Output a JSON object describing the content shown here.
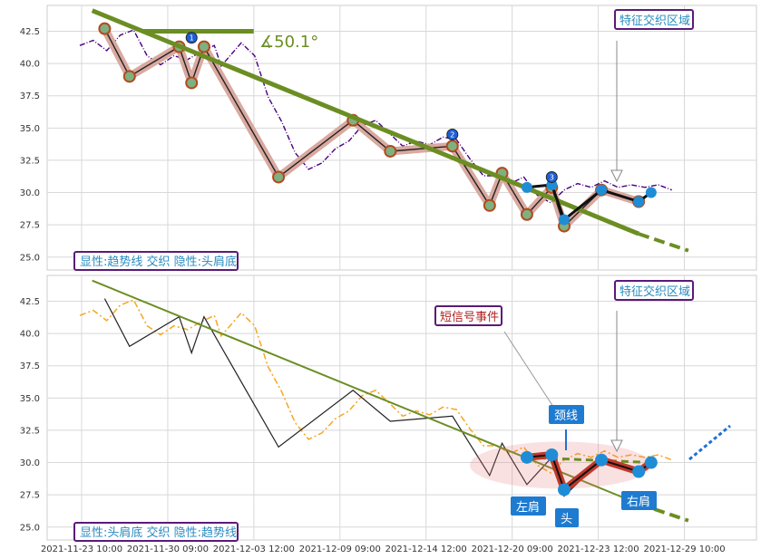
{
  "chart_data": [
    {
      "type": "line",
      "ylim": [
        24,
        44.5
      ],
      "yticks": [
        "25.0",
        "27.5",
        "30.0",
        "32.5",
        "35.0",
        "37.5",
        "40.0",
        "42.5"
      ],
      "grid": true,
      "legend_label": "显性:趋势线 交织 隐性:头肩底",
      "annotation_region": "特征交织区域",
      "angle_label": "∡50.1°",
      "price_series_color": "#4b0082",
      "price_series": [
        [
          0,
          41.4
        ],
        [
          2,
          41.8
        ],
        [
          4,
          41.0
        ],
        [
          6,
          42.2
        ],
        [
          8,
          42.6
        ],
        [
          10,
          40.6
        ],
        [
          12,
          39.9
        ],
        [
          14,
          40.6
        ],
        [
          16,
          40.3
        ],
        [
          18,
          40.9
        ],
        [
          20,
          41.4
        ],
        [
          21,
          39.8
        ],
        [
          22,
          40.4
        ],
        [
          24,
          41.6
        ],
        [
          26,
          40.6
        ],
        [
          28,
          37.4
        ],
        [
          30,
          35.5
        ],
        [
          32,
          33.1
        ],
        [
          34,
          31.8
        ],
        [
          36,
          32.3
        ],
        [
          38,
          33.4
        ],
        [
          40,
          34.0
        ],
        [
          42,
          35.2
        ],
        [
          44,
          35.6
        ],
        [
          46,
          34.6
        ],
        [
          48,
          33.6
        ],
        [
          50,
          34.0
        ],
        [
          52,
          33.7
        ],
        [
          54,
          34.3
        ],
        [
          56,
          34.1
        ],
        [
          58,
          32.6
        ],
        [
          60,
          31.3
        ],
        [
          62,
          31.3
        ],
        [
          64,
          30.7
        ],
        [
          66,
          31.2
        ],
        [
          68,
          29.8
        ],
        [
          70,
          29.2
        ],
        [
          72,
          30.2
        ],
        [
          74,
          30.7
        ],
        [
          76,
          30.4
        ],
        [
          78,
          30.9
        ],
        [
          80,
          30.4
        ],
        [
          82,
          30.6
        ],
        [
          84,
          30.4
        ],
        [
          86,
          30.6
        ],
        [
          88,
          30.2
        ]
      ],
      "zigzag": [
        [
          2,
          42.7
        ],
        [
          4,
          39.0
        ],
        [
          8,
          41.3
        ],
        [
          9,
          38.5
        ],
        [
          10,
          41.3
        ],
        [
          16,
          31.2
        ],
        [
          22,
          35.6
        ],
        [
          25,
          33.2
        ],
        [
          30,
          33.6
        ],
        [
          33,
          29.0
        ],
        [
          34,
          31.5
        ],
        [
          36,
          28.3
        ],
        [
          38,
          30.4
        ],
        [
          39,
          27.4
        ],
        [
          42,
          30.2
        ],
        [
          45,
          29.3
        ]
      ],
      "hs_points": [
        [
          36,
          30.4
        ],
        [
          38,
          30.6
        ],
        [
          39,
          27.9
        ],
        [
          42,
          30.2
        ],
        [
          45,
          29.3
        ],
        [
          46,
          30.0
        ]
      ],
      "trend_line": {
        "x": [
          1,
          45
        ],
        "y": [
          44.1,
          26.8
        ],
        "color": "#6b8e23"
      },
      "trend_extension": {
        "x": [
          45,
          49
        ],
        "y": [
          26.8,
          25.5
        ]
      },
      "horizontal_bar": {
        "x": [
          5,
          14
        ],
        "y": 42.5
      },
      "marker_labels": [
        "1",
        "2",
        "3"
      ]
    },
    {
      "type": "line",
      "ylim": [
        24,
        44.5
      ],
      "yticks": [
        "25.0",
        "27.5",
        "30.0",
        "32.5",
        "35.0",
        "37.5",
        "40.0",
        "42.5"
      ],
      "grid": true,
      "legend_label": "显性:头肩底 交织 隐性:趋势线",
      "annotation_region": "特征交织区域",
      "annotation_event": "短信号事件",
      "pattern_labels": {
        "neckline": "颈线",
        "left_shoulder": "左肩",
        "head": "头",
        "right_shoulder": "右肩"
      },
      "price_series_color": "#f5a623",
      "xticks": [
        "2021-11-23 10:00",
        "2021-11-30 09:00",
        "2021-12-03 12:00",
        "2021-12-09 09:00",
        "2021-12-14 12:00",
        "2021-12-20 09:00",
        "2021-12-23 12:00",
        "2021-12-29 10:00"
      ]
    }
  ]
}
